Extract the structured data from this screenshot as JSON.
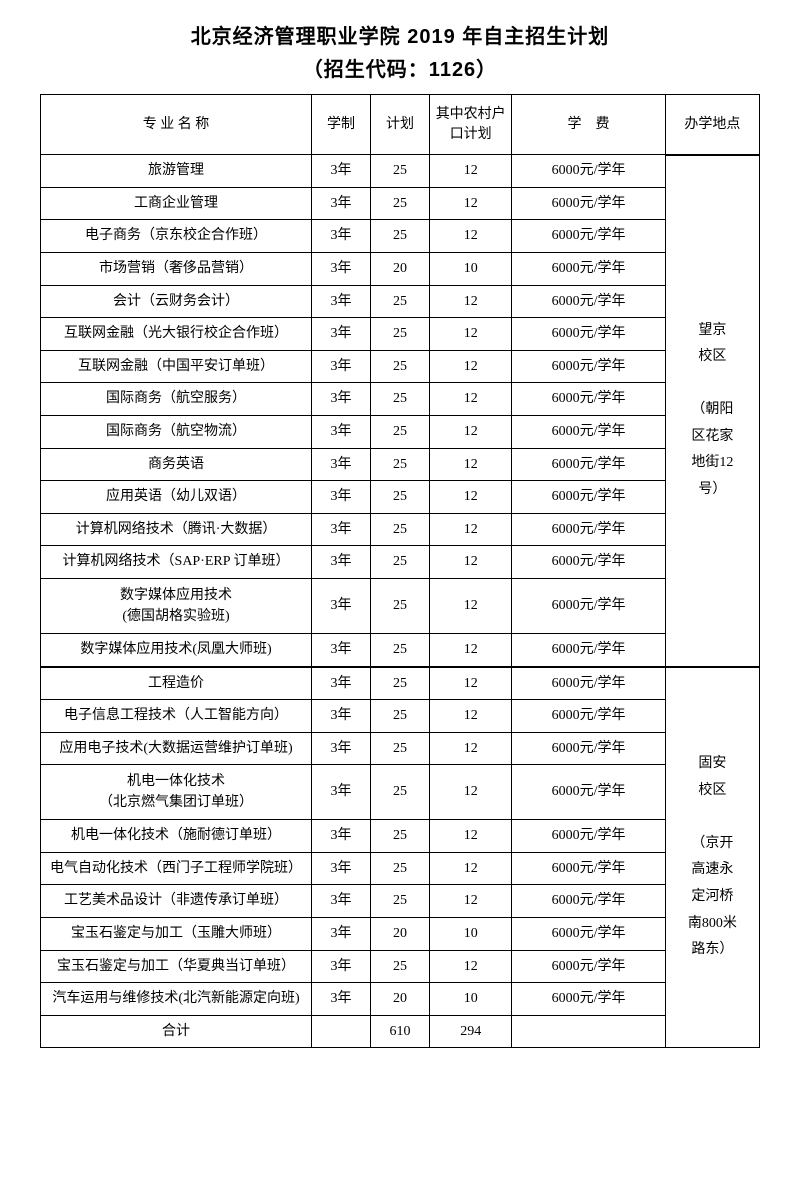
{
  "title_line1": "北京经济管理职业学院 2019 年自主招生计划",
  "title_line2": "（招生代码：1126）",
  "headers": {
    "major": "专 业 名 称",
    "duration": "学制",
    "plan": "计划",
    "rural": "其中农村户口计划",
    "tuition": "学　费",
    "location": "办学地点"
  },
  "group1": {
    "location": "望京\n校区\n\n（朝阳\n区花家\n地街12\n号）",
    "rows": [
      {
        "major": "旅游管理",
        "duration": "3年",
        "plan": "25",
        "rural": "12",
        "tuition": "6000元/学年"
      },
      {
        "major": "工商企业管理",
        "duration": "3年",
        "plan": "25",
        "rural": "12",
        "tuition": "6000元/学年"
      },
      {
        "major": "电子商务（京东校企合作班）",
        "duration": "3年",
        "plan": "25",
        "rural": "12",
        "tuition": "6000元/学年"
      },
      {
        "major": "市场营销（奢侈品营销）",
        "duration": "3年",
        "plan": "20",
        "rural": "10",
        "tuition": "6000元/学年"
      },
      {
        "major": "会计（云财务会计）",
        "duration": "3年",
        "plan": "25",
        "rural": "12",
        "tuition": "6000元/学年"
      },
      {
        "major": "互联网金融（光大银行校企合作班）",
        "duration": "3年",
        "plan": "25",
        "rural": "12",
        "tuition": "6000元/学年"
      },
      {
        "major": "互联网金融（中国平安订单班）",
        "duration": "3年",
        "plan": "25",
        "rural": "12",
        "tuition": "6000元/学年"
      },
      {
        "major": "国际商务（航空服务）",
        "duration": "3年",
        "plan": "25",
        "rural": "12",
        "tuition": "6000元/学年"
      },
      {
        "major": "国际商务（航空物流）",
        "duration": "3年",
        "plan": "25",
        "rural": "12",
        "tuition": "6000元/学年"
      },
      {
        "major": "商务英语",
        "duration": "3年",
        "plan": "25",
        "rural": "12",
        "tuition": "6000元/学年"
      },
      {
        "major": "应用英语（幼儿双语）",
        "duration": "3年",
        "plan": "25",
        "rural": "12",
        "tuition": "6000元/学年"
      },
      {
        "major": "计算机网络技术（腾讯·大数据）",
        "duration": "3年",
        "plan": "25",
        "rural": "12",
        "tuition": "6000元/学年"
      },
      {
        "major": "计算机网络技术（SAP·ERP 订单班）",
        "duration": "3年",
        "plan": "25",
        "rural": "12",
        "tuition": "6000元/学年"
      },
      {
        "major": "数字媒体应用技术\n(德国胡格实验班)",
        "duration": "3年",
        "plan": "25",
        "rural": "12",
        "tuition": "6000元/学年",
        "multiline": true
      },
      {
        "major": "数字媒体应用技术(凤凰大师班)",
        "duration": "3年",
        "plan": "25",
        "rural": "12",
        "tuition": "6000元/学年"
      }
    ]
  },
  "group2": {
    "location": "固安\n校区\n\n（京开\n高速永\n定河桥\n南800米\n路东）",
    "rows": [
      {
        "major": "工程造价",
        "duration": "3年",
        "plan": "25",
        "rural": "12",
        "tuition": "6000元/学年"
      },
      {
        "major": "电子信息工程技术（人工智能方向）",
        "duration": "3年",
        "plan": "25",
        "rural": "12",
        "tuition": "6000元/学年"
      },
      {
        "major": "应用电子技术(大数据运营维护订单班)",
        "duration": "3年",
        "plan": "25",
        "rural": "12",
        "tuition": "6000元/学年"
      },
      {
        "major": "机电一体化技术\n（北京燃气集团订单班）",
        "duration": "3年",
        "plan": "25",
        "rural": "12",
        "tuition": "6000元/学年",
        "multiline": true
      },
      {
        "major": "机电一体化技术（施耐德订单班）",
        "duration": "3年",
        "plan": "25",
        "rural": "12",
        "tuition": "6000元/学年"
      },
      {
        "major": "电气自动化技术（西门子工程师学院班）",
        "duration": "3年",
        "plan": "25",
        "rural": "12",
        "tuition": "6000元/学年"
      },
      {
        "major": "工艺美术品设计（非遗传承订单班）",
        "duration": "3年",
        "plan": "25",
        "rural": "12",
        "tuition": "6000元/学年"
      },
      {
        "major": "宝玉石鉴定与加工（玉雕大师班）",
        "duration": "3年",
        "plan": "20",
        "rural": "10",
        "tuition": "6000元/学年"
      },
      {
        "major": "宝玉石鉴定与加工（华夏典当订单班）",
        "duration": "3年",
        "plan": "25",
        "rural": "12",
        "tuition": "6000元/学年"
      },
      {
        "major": "汽车运用与维修技术(北汽新能源定向班)",
        "duration": "3年",
        "plan": "20",
        "rural": "10",
        "tuition": "6000元/学年"
      }
    ]
  },
  "total": {
    "label": "合计",
    "plan": "610",
    "rural": "294"
  }
}
